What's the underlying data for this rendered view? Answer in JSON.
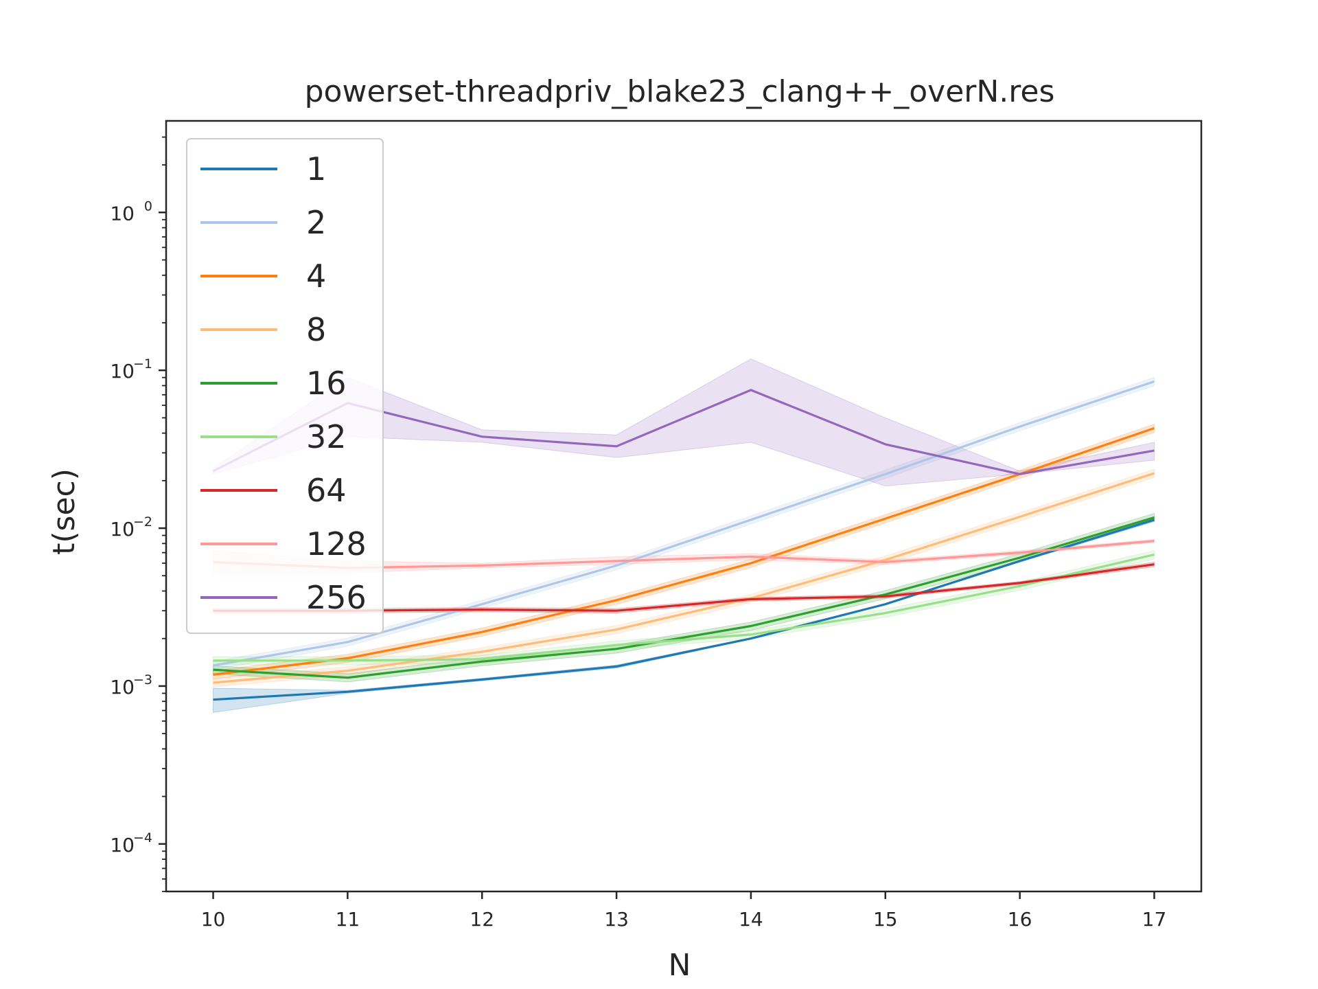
{
  "chart_data": {
    "type": "line",
    "title": "powerset-threadpriv_blake23_clang++_overN.res",
    "xlabel": "N",
    "ylabel": "t(sec)",
    "yscale": "log",
    "xlim": [
      9.65,
      17.35
    ],
    "ylim": [
      5e-05,
      3.8
    ],
    "x": [
      10,
      11,
      12,
      13,
      14,
      15,
      16,
      17
    ],
    "x_ticks": [
      "10",
      "11",
      "12",
      "13",
      "14",
      "15",
      "16",
      "17"
    ],
    "y_ticks": [
      {
        "value": 0.0001,
        "base": "10",
        "exp": "−4"
      },
      {
        "value": 0.001,
        "base": "10",
        "exp": "−3"
      },
      {
        "value": 0.01,
        "base": "10",
        "exp": "−2"
      },
      {
        "value": 0.1,
        "base": "10",
        "exp": "−1"
      },
      {
        "value": 1,
        "base": "10",
        "exp": "0"
      }
    ],
    "grid": false,
    "legend_position": "top-left",
    "series": [
      {
        "name": "1",
        "color": "#1f77b4",
        "values": [
          0.00082,
          0.00092,
          0.0011,
          0.00133,
          0.002,
          0.0033,
          0.0062,
          0.0113
        ],
        "lower": [
          0.00068,
          0.0009,
          0.00108,
          0.0013,
          0.00198,
          0.00328,
          0.0061,
          0.0111
        ],
        "upper": [
          0.00097,
          0.00094,
          0.00112,
          0.00136,
          0.00202,
          0.00332,
          0.0063,
          0.0115
        ]
      },
      {
        "name": "2",
        "color": "#aec7e8",
        "values": [
          0.00135,
          0.0019,
          0.0033,
          0.0058,
          0.0113,
          0.022,
          0.044,
          0.085
        ]
      },
      {
        "name": "4",
        "color": "#ff7f0e",
        "values": [
          0.00118,
          0.0015,
          0.0022,
          0.0035,
          0.006,
          0.0115,
          0.022,
          0.043
        ]
      },
      {
        "name": "8",
        "color": "#ffbb78",
        "values": [
          0.00105,
          0.00125,
          0.00165,
          0.00228,
          0.0036,
          0.0063,
          0.0118,
          0.0223
        ]
      },
      {
        "name": "16",
        "color": "#2ca02c",
        "values": [
          0.00127,
          0.00113,
          0.00143,
          0.00172,
          0.0024,
          0.0038,
          0.0065,
          0.0117
        ]
      },
      {
        "name": "32",
        "color": "#98df8a",
        "values": [
          0.00145,
          0.00145,
          0.00148,
          0.00182,
          0.00212,
          0.0029,
          0.0043,
          0.0068
        ]
      },
      {
        "name": "64",
        "color": "#d62728",
        "values": [
          0.003,
          0.003,
          0.00305,
          0.003,
          0.00355,
          0.0037,
          0.0045,
          0.0059
        ],
        "lower": [
          0.0029,
          0.0029,
          0.00295,
          0.0029,
          0.00345,
          0.0036,
          0.0044,
          0.0057
        ],
        "upper": [
          0.0031,
          0.0031,
          0.00315,
          0.0031,
          0.00365,
          0.0038,
          0.0046,
          0.0061
        ]
      },
      {
        "name": "128",
        "color": "#ff9896",
        "values": [
          0.0061,
          0.0056,
          0.0058,
          0.0062,
          0.0066,
          0.0061,
          0.007,
          0.0083
        ],
        "lower": [
          0.0052,
          0.0052,
          0.0056,
          0.0059,
          0.0063,
          0.0059,
          0.0068,
          0.0081
        ],
        "upper": [
          0.0072,
          0.0062,
          0.006,
          0.0066,
          0.0069,
          0.0063,
          0.0072,
          0.0085
        ]
      },
      {
        "name": "256",
        "color": "#9467bd",
        "values": [
          0.023,
          0.062,
          0.038,
          0.033,
          0.075,
          0.034,
          0.022,
          0.031
        ],
        "lower": [
          0.022,
          0.038,
          0.035,
          0.028,
          0.035,
          0.0185,
          0.022,
          0.027
        ],
        "upper": [
          0.024,
          0.09,
          0.042,
          0.039,
          0.118,
          0.05,
          0.023,
          0.035
        ]
      }
    ]
  }
}
